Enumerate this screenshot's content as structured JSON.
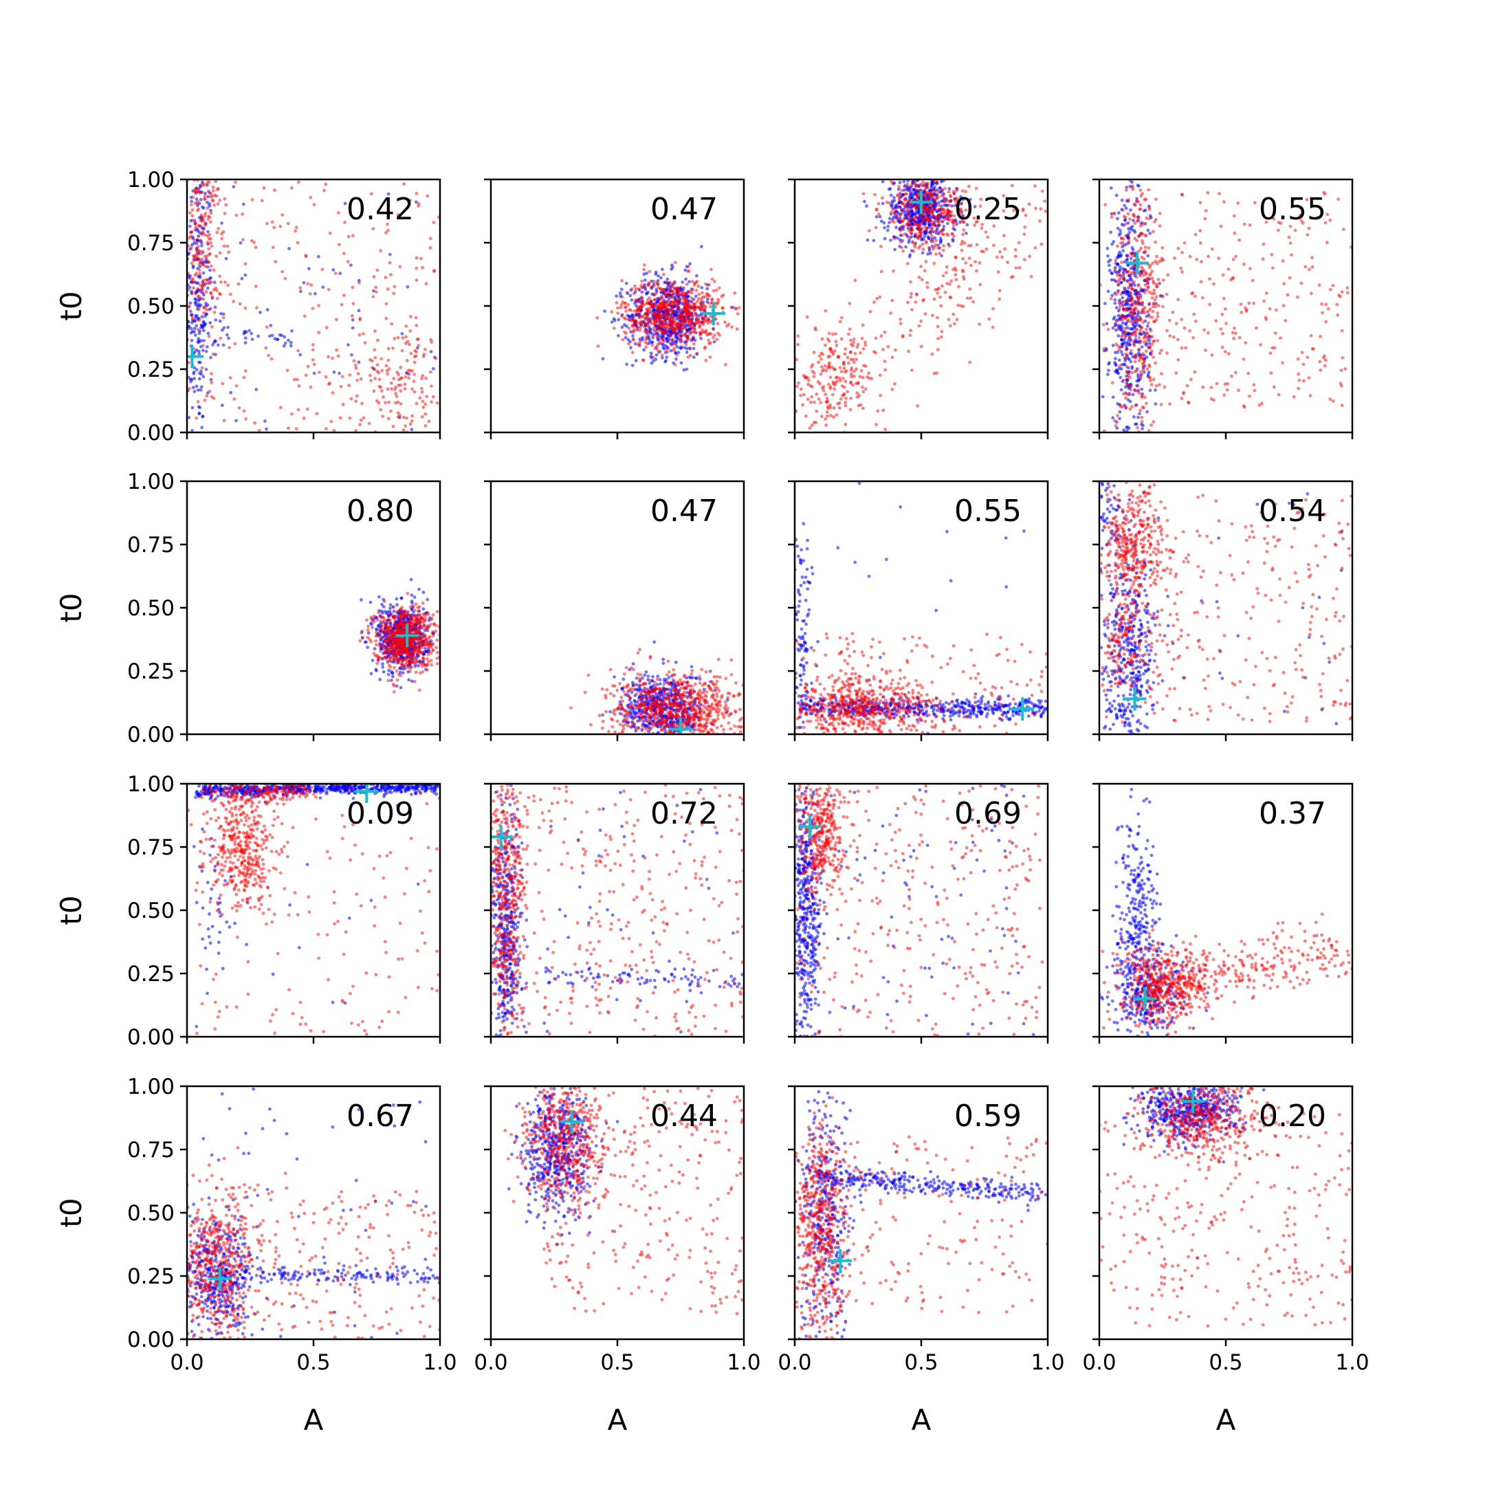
{
  "figure": {
    "grid_rows": 4,
    "grid_cols": 4,
    "colors": {
      "series_a": "#0000ff",
      "series_b": "#ff0000",
      "marker": "#17becf",
      "axes": "#000000"
    }
  },
  "chart_data": {
    "type": "scatter",
    "xlabel": "A",
    "ylabel": "t0",
    "xlim": [
      0,
      1
    ],
    "ylim": [
      0,
      1
    ],
    "x_ticks": [
      "0.0",
      "0.5",
      "1.0"
    ],
    "y_ticks": [
      "0.00",
      "0.25",
      "0.50",
      "0.75",
      "1.00"
    ],
    "grid": false,
    "marker_symbol": "+",
    "panels": [
      {
        "value": "0.42",
        "marker": [
          0.02,
          0.3
        ],
        "blue": [
          {
            "shape": "gauss",
            "cx": 0.04,
            "cy": 0.55,
            "sx": 0.03,
            "sy": 0.28,
            "n": 260
          },
          {
            "shape": "line",
            "x0": 0.05,
            "y0": 0.4,
            "x1": 0.45,
            "y1": 0.38,
            "spread": 0.03,
            "n": 40
          },
          {
            "shape": "uniform",
            "x0": 0,
            "y0": 0,
            "x1": 1,
            "y1": 1,
            "n": 60
          }
        ],
        "red": [
          {
            "shape": "gauss",
            "cx": 0.06,
            "cy": 0.75,
            "sx": 0.04,
            "sy": 0.18,
            "n": 200
          },
          {
            "shape": "gauss",
            "cx": 0.85,
            "cy": 0.22,
            "sx": 0.08,
            "sy": 0.1,
            "n": 110
          },
          {
            "shape": "uniform",
            "x0": 0,
            "y0": 0,
            "x1": 1,
            "y1": 1,
            "n": 260
          }
        ]
      },
      {
        "value": "0.47",
        "marker": [
          0.88,
          0.47
        ],
        "blue": [
          {
            "shape": "gauss",
            "cx": 0.7,
            "cy": 0.46,
            "sx": 0.08,
            "sy": 0.08,
            "n": 600
          }
        ],
        "red": [
          {
            "shape": "gauss",
            "cx": 0.72,
            "cy": 0.47,
            "sx": 0.1,
            "sy": 0.07,
            "n": 650
          }
        ]
      },
      {
        "value": "0.25",
        "marker": [
          0.5,
          0.91
        ],
        "blue": [
          {
            "shape": "gauss",
            "cx": 0.5,
            "cy": 0.88,
            "sx": 0.07,
            "sy": 0.07,
            "n": 560
          }
        ],
        "red": [
          {
            "shape": "gauss",
            "cx": 0.52,
            "cy": 0.88,
            "sx": 0.09,
            "sy": 0.08,
            "n": 380
          },
          {
            "shape": "gauss",
            "cx": 0.15,
            "cy": 0.2,
            "sx": 0.08,
            "sy": 0.08,
            "n": 130
          },
          {
            "shape": "line",
            "x0": 0.05,
            "y0": 0.15,
            "x1": 0.95,
            "y1": 0.85,
            "spread": 0.12,
            "n": 280
          }
        ]
      },
      {
        "value": "0.55",
        "marker": [
          0.15,
          0.67
        ],
        "blue": [
          {
            "shape": "gauss",
            "cx": 0.12,
            "cy": 0.45,
            "sx": 0.04,
            "sy": 0.25,
            "n": 500
          }
        ],
        "red": [
          {
            "shape": "gauss",
            "cx": 0.15,
            "cy": 0.5,
            "sx": 0.05,
            "sy": 0.25,
            "n": 400
          },
          {
            "shape": "uniform",
            "x0": 0.2,
            "y0": 0.1,
            "x1": 1,
            "y1": 0.95,
            "n": 260
          }
        ]
      },
      {
        "value": "0.80",
        "marker": [
          0.87,
          0.39
        ],
        "blue": [
          {
            "shape": "gauss",
            "cx": 0.85,
            "cy": 0.38,
            "sx": 0.05,
            "sy": 0.07,
            "n": 600
          }
        ],
        "red": [
          {
            "shape": "gauss",
            "cx": 0.86,
            "cy": 0.38,
            "sx": 0.06,
            "sy": 0.06,
            "n": 650
          }
        ]
      },
      {
        "value": "0.47",
        "marker": [
          0.75,
          0.02
        ],
        "blue": [
          {
            "shape": "gauss",
            "cx": 0.68,
            "cy": 0.1,
            "sx": 0.08,
            "sy": 0.07,
            "n": 550
          }
        ],
        "red": [
          {
            "shape": "gauss",
            "cx": 0.74,
            "cy": 0.1,
            "sx": 0.13,
            "sy": 0.07,
            "n": 750
          }
        ]
      },
      {
        "value": "0.55",
        "marker": [
          0.9,
          0.1
        ],
        "blue": [
          {
            "shape": "line",
            "x0": 0.02,
            "y0": 0.11,
            "x1": 1.0,
            "y1": 0.1,
            "spread": 0.02,
            "n": 500
          },
          {
            "shape": "gauss",
            "cx": 0.03,
            "cy": 0.35,
            "sx": 0.02,
            "sy": 0.22,
            "n": 100
          },
          {
            "shape": "uniform",
            "x0": 0,
            "y0": 0,
            "x1": 1,
            "y1": 1,
            "n": 20
          }
        ],
        "red": [
          {
            "shape": "gauss",
            "cx": 0.25,
            "cy": 0.1,
            "sx": 0.15,
            "sy": 0.06,
            "n": 550
          },
          {
            "shape": "uniform",
            "x0": 0,
            "y0": 0,
            "x1": 1,
            "y1": 0.4,
            "n": 160
          }
        ]
      },
      {
        "value": "0.54",
        "marker": [
          0.14,
          0.14
        ],
        "blue": [
          {
            "shape": "gauss",
            "cx": 0.12,
            "cy": 0.3,
            "sx": 0.05,
            "sy": 0.2,
            "n": 400
          },
          {
            "shape": "gauss",
            "cx": 0.04,
            "cy": 0.85,
            "sx": 0.03,
            "sy": 0.1,
            "n": 60
          },
          {
            "shape": "uniform",
            "x0": 0,
            "y0": 0,
            "x1": 1,
            "y1": 1,
            "n": 40
          }
        ],
        "red": [
          {
            "shape": "gauss",
            "cx": 0.13,
            "cy": 0.75,
            "sx": 0.06,
            "sy": 0.12,
            "n": 350
          },
          {
            "shape": "gauss",
            "cx": 0.1,
            "cy": 0.35,
            "sx": 0.05,
            "sy": 0.12,
            "n": 150
          },
          {
            "shape": "uniform",
            "x0": 0.15,
            "y0": 0.05,
            "x1": 1,
            "y1": 0.95,
            "n": 260
          }
        ]
      },
      {
        "value": "0.09",
        "marker": [
          0.71,
          0.97
        ],
        "blue": [
          {
            "shape": "line",
            "x0": 0.03,
            "y0": 0.97,
            "x1": 1.0,
            "y1": 0.99,
            "spread": 0.012,
            "n": 650
          },
          {
            "shape": "gauss",
            "cx": 0.1,
            "cy": 0.55,
            "sx": 0.04,
            "sy": 0.2,
            "n": 40
          },
          {
            "shape": "uniform",
            "x0": 0,
            "y0": 0,
            "x1": 1,
            "y1": 1,
            "n": 15
          }
        ],
        "red": [
          {
            "shape": "gauss",
            "cx": 0.22,
            "cy": 0.75,
            "sx": 0.07,
            "sy": 0.12,
            "n": 400
          },
          {
            "shape": "line",
            "x0": 0.05,
            "y0": 0.96,
            "x1": 0.5,
            "y1": 0.97,
            "spread": 0.02,
            "n": 150
          },
          {
            "shape": "uniform",
            "x0": 0,
            "y0": 0,
            "x1": 1,
            "y1": 1,
            "n": 140
          }
        ]
      },
      {
        "value": "0.72",
        "marker": [
          0.04,
          0.79
        ],
        "blue": [
          {
            "shape": "gauss",
            "cx": 0.06,
            "cy": 0.4,
            "sx": 0.03,
            "sy": 0.25,
            "n": 400
          },
          {
            "shape": "line",
            "x0": 0.2,
            "y0": 0.24,
            "x1": 1.0,
            "y1": 0.22,
            "spread": 0.02,
            "n": 80
          },
          {
            "shape": "uniform",
            "x0": 0,
            "y0": 0,
            "x1": 1,
            "y1": 1,
            "n": 50
          }
        ],
        "red": [
          {
            "shape": "gauss",
            "cx": 0.06,
            "cy": 0.55,
            "sx": 0.04,
            "sy": 0.28,
            "n": 500
          },
          {
            "shape": "uniform",
            "x0": 0.1,
            "y0": 0,
            "x1": 1,
            "y1": 1,
            "n": 300
          }
        ]
      },
      {
        "value": "0.69",
        "marker": [
          0.06,
          0.83
        ],
        "blue": [
          {
            "shape": "gauss",
            "cx": 0.04,
            "cy": 0.5,
            "sx": 0.03,
            "sy": 0.28,
            "n": 480
          },
          {
            "shape": "uniform",
            "x0": 0,
            "y0": 0,
            "x1": 1,
            "y1": 1,
            "n": 80
          }
        ],
        "red": [
          {
            "shape": "gauss",
            "cx": 0.1,
            "cy": 0.8,
            "sx": 0.05,
            "sy": 0.12,
            "n": 350
          },
          {
            "shape": "uniform",
            "x0": 0,
            "y0": 0,
            "x1": 1,
            "y1": 1,
            "n": 300
          }
        ]
      },
      {
        "value": "0.37",
        "marker": [
          0.18,
          0.15
        ],
        "blue": [
          {
            "shape": "gauss",
            "cx": 0.15,
            "cy": 0.45,
            "sx": 0.04,
            "sy": 0.22,
            "n": 300
          },
          {
            "shape": "gauss",
            "cx": 0.2,
            "cy": 0.18,
            "sx": 0.08,
            "sy": 0.08,
            "n": 250
          }
        ],
        "red": [
          {
            "shape": "gauss",
            "cx": 0.25,
            "cy": 0.2,
            "sx": 0.08,
            "sy": 0.08,
            "n": 500
          },
          {
            "shape": "line",
            "x0": 0.3,
            "y0": 0.22,
            "x1": 0.98,
            "y1": 0.33,
            "spread": 0.06,
            "n": 220
          }
        ]
      },
      {
        "value": "0.67",
        "marker": [
          0.13,
          0.24
        ],
        "blue": [
          {
            "shape": "gauss",
            "cx": 0.12,
            "cy": 0.25,
            "sx": 0.07,
            "sy": 0.12,
            "n": 400
          },
          {
            "shape": "line",
            "x0": 0.1,
            "y0": 0.26,
            "x1": 1.0,
            "y1": 0.25,
            "spread": 0.015,
            "n": 150
          },
          {
            "shape": "uniform",
            "x0": 0,
            "y0": 0,
            "x1": 1,
            "y1": 1,
            "n": 50
          }
        ],
        "red": [
          {
            "shape": "gauss",
            "cx": 0.12,
            "cy": 0.3,
            "sx": 0.08,
            "sy": 0.15,
            "n": 450
          },
          {
            "shape": "uniform",
            "x0": 0.1,
            "y0": 0,
            "x1": 1,
            "y1": 0.6,
            "n": 220
          }
        ]
      },
      {
        "value": "0.44",
        "marker": [
          0.32,
          0.86
        ],
        "blue": [
          {
            "shape": "gauss",
            "cx": 0.26,
            "cy": 0.75,
            "sx": 0.07,
            "sy": 0.13,
            "n": 500
          }
        ],
        "red": [
          {
            "shape": "gauss",
            "cx": 0.28,
            "cy": 0.78,
            "sx": 0.08,
            "sy": 0.13,
            "n": 450
          },
          {
            "shape": "uniform",
            "x0": 0.2,
            "y0": 0.1,
            "x1": 1,
            "y1": 1,
            "n": 280
          }
        ]
      },
      {
        "value": "0.59",
        "marker": [
          0.18,
          0.31
        ],
        "blue": [
          {
            "shape": "line",
            "x0": 0.05,
            "y0": 0.65,
            "x1": 1.0,
            "y1": 0.57,
            "spread": 0.02,
            "n": 300
          },
          {
            "shape": "gauss",
            "cx": 0.12,
            "cy": 0.5,
            "sx": 0.05,
            "sy": 0.28,
            "n": 350
          }
        ],
        "red": [
          {
            "shape": "gauss",
            "cx": 0.1,
            "cy": 0.4,
            "sx": 0.05,
            "sy": 0.22,
            "n": 500
          },
          {
            "shape": "uniform",
            "x0": 0.1,
            "y0": 0.1,
            "x1": 1,
            "y1": 0.8,
            "n": 180
          }
        ]
      },
      {
        "value": "0.20",
        "marker": [
          0.37,
          0.94
        ],
        "blue": [
          {
            "shape": "gauss",
            "cx": 0.35,
            "cy": 0.9,
            "sx": 0.1,
            "sy": 0.06,
            "n": 500
          }
        ],
        "red": [
          {
            "shape": "gauss",
            "cx": 0.4,
            "cy": 0.88,
            "sx": 0.12,
            "sy": 0.08,
            "n": 420
          },
          {
            "shape": "uniform",
            "x0": 0,
            "y0": 0.05,
            "x1": 1,
            "y1": 0.9,
            "n": 300
          }
        ]
      }
    ]
  }
}
